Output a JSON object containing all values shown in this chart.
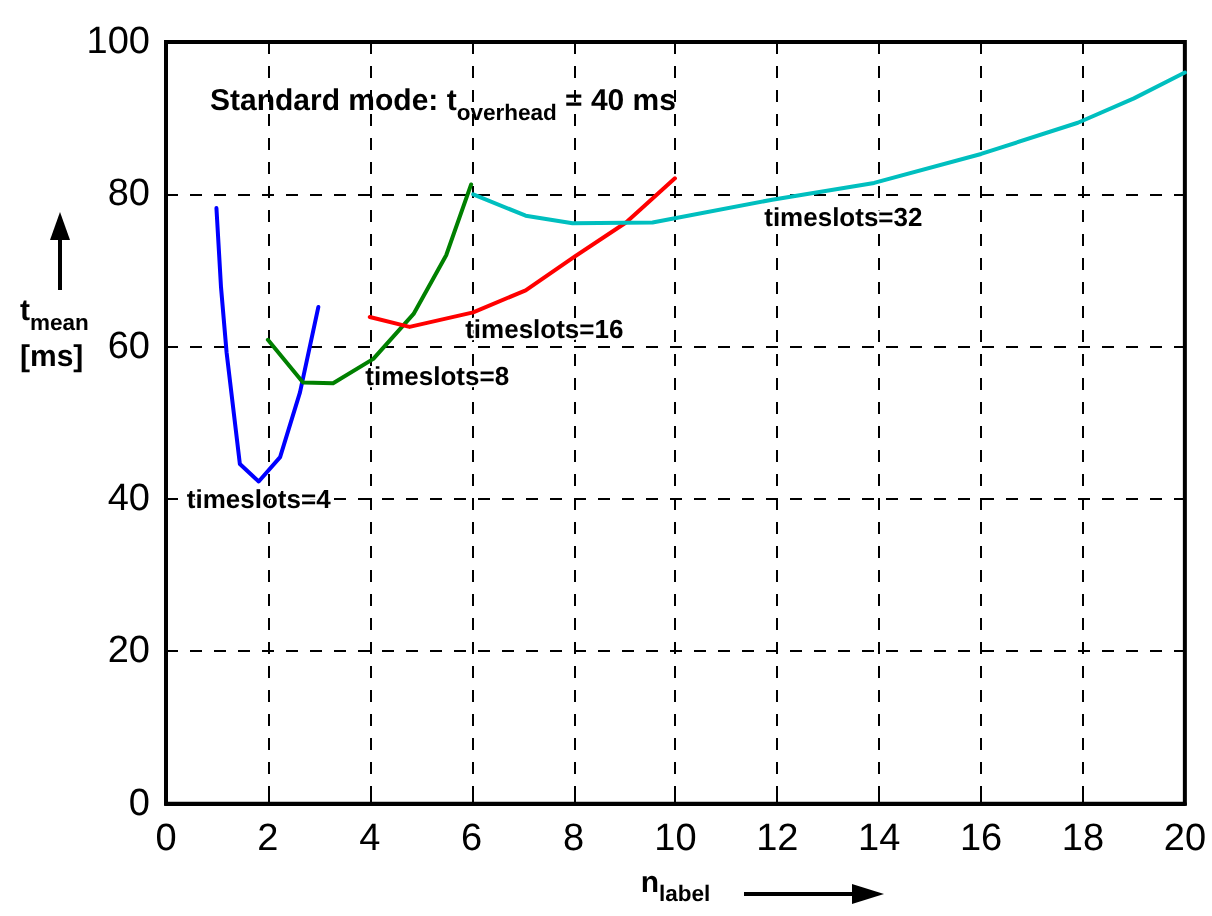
{
  "chart_data": {
    "type": "line",
    "xlabel": "n$_{label}$",
    "ylabel": "t$_{mean}$\n[ms]",
    "annotations": [
      "Standard mode: t$_{overhead}$ = 40 ms"
    ],
    "xlim": [
      0,
      20
    ],
    "xticks": [
      0,
      2,
      4,
      6,
      8,
      10,
      12,
      14,
      16,
      18,
      20
    ],
    "ylim": [
      0,
      100
    ],
    "yticks": [
      0,
      20,
      40,
      60,
      80,
      100
    ],
    "grid": true,
    "marker": "none",
    "line_style": "solid",
    "legend": false,
    "series": [
      {
        "name": "timeslots=4",
        "color": "#0000ff",
        "x": [
          0.99,
          1.08,
          1.19,
          1.45,
          1.82,
          2.24,
          2.63,
          2.99
        ],
        "values": [
          78.2,
          67.8,
          59.2,
          44.6,
          42.3,
          45.5,
          54,
          65.2
        ]
      },
      {
        "name": "timeslots=8",
        "color": "#008000",
        "x": [
          2,
          2.69,
          3.28,
          4.07,
          4.86,
          5.5,
          5.99
        ],
        "values": [
          60.9,
          55.3,
          55.2,
          58.4,
          64.3,
          72,
          81.3
        ]
      },
      {
        "name": "timeslots=16",
        "color": "#ff0000",
        "x": [
          4,
          4.78,
          6.03,
          7.06,
          7.97,
          9.03,
          9.99
        ],
        "values": [
          63.9,
          62.6,
          64.5,
          67.4,
          71.6,
          76.3,
          82.1
        ]
      },
      {
        "name": "timeslots=32",
        "color": "#00bfbf",
        "x": [
          6.03,
          7.06,
          7.98,
          9.55,
          11.9,
          13.9,
          16,
          17.9,
          19,
          20
        ],
        "values": [
          80,
          77.2,
          76.2,
          76.3,
          79.3,
          81.5,
          85.3,
          89.4,
          92.6,
          96
        ]
      }
    ]
  }
}
